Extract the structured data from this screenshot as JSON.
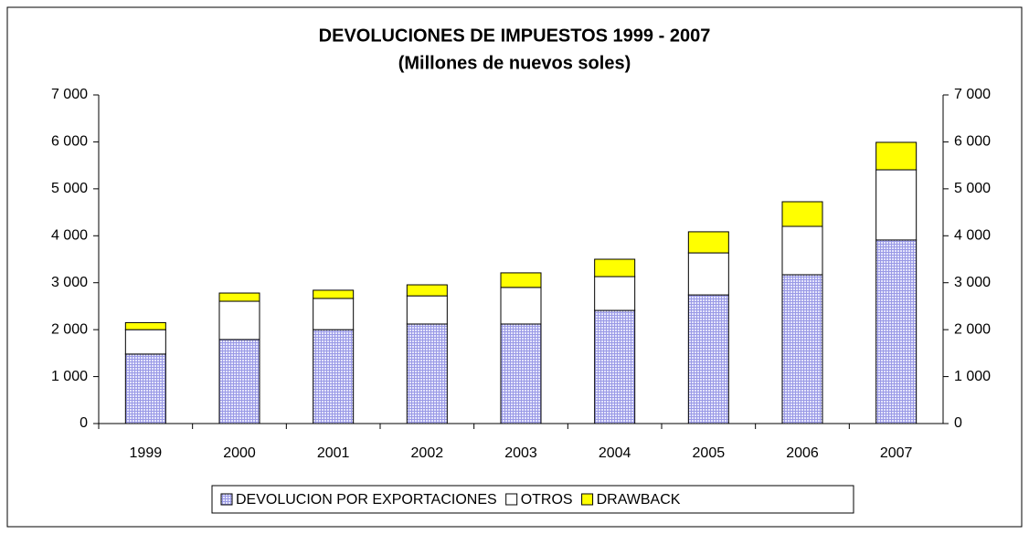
{
  "chart_data": {
    "type": "stacked-bar",
    "title": "DEVOLUCIONES DE IMPUESTOS 1999 - 2007",
    "subtitle": "(Millones de nuevos soles)",
    "categories": [
      "1999",
      "2000",
      "2001",
      "2002",
      "2003",
      "2004",
      "2005",
      "2006",
      "2007"
    ],
    "series": [
      {
        "name": "DEVOLUCION POR EXPORTACIONES",
        "color": "#c8c8f4",
        "values": [
          1480,
          1790,
          2000,
          2120,
          2120,
          2410,
          2740,
          3170,
          3910
        ]
      },
      {
        "name": "OTROS",
        "color": "#ffffff",
        "values": [
          520,
          815,
          665,
          600,
          780,
          720,
          895,
          1030,
          1495
        ]
      },
      {
        "name": "DRAWBACK",
        "color": "#ffff00",
        "values": [
          150,
          175,
          175,
          235,
          310,
          370,
          450,
          525,
          585
        ]
      }
    ],
    "ylim": [
      0,
      7000
    ],
    "yticks": [
      0,
      {
        "value": 1000,
        "label": "1 000"
      },
      {
        "value": 2000,
        "label": "2 000"
      },
      {
        "value": 3000,
        "label": "3 000"
      },
      {
        "value": 4000,
        "label": "4 000"
      },
      {
        "value": 5000,
        "label": "5 000"
      },
      {
        "value": 6000,
        "label": "6 000"
      },
      {
        "value": 7000,
        "label": "7 000"
      }
    ],
    "y2lim": [
      0,
      7000
    ],
    "y2ticks": [
      0,
      {
        "value": 1000,
        "label": "1 000"
      },
      {
        "value": 2000,
        "label": "2 000"
      },
      {
        "value": 3000,
        "label": "3 000"
      },
      {
        "value": 4000,
        "label": "4 000"
      },
      {
        "value": 5000,
        "label": "5 000"
      },
      {
        "value": 6000,
        "label": "6 000"
      },
      {
        "value": 7000,
        "label": "7 000"
      }
    ],
    "legend": "bottom"
  }
}
